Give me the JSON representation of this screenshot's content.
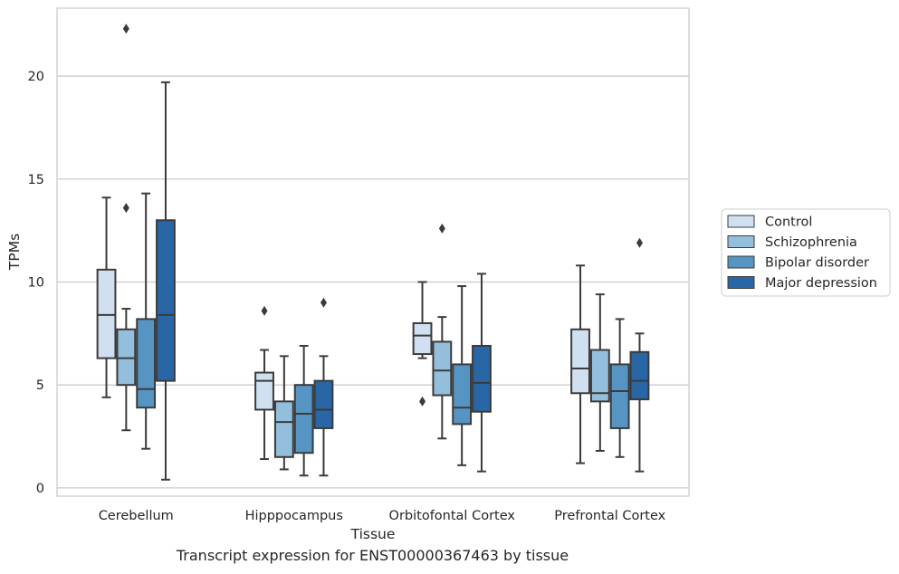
{
  "caption": "Transcript expression for ENST00000367463 by tissue",
  "chart_data": {
    "type": "box",
    "xlabel": "Tissue",
    "ylabel": "TPMs",
    "ylim": [
      -0.4,
      23.3
    ],
    "yticks": [
      0,
      5,
      10,
      15,
      20
    ],
    "grid": "horizontal",
    "legend_position": "right-outside",
    "categories": [
      "Cerebellum",
      "Hipppocampus",
      "Orbitofontal Cortex",
      "Prefrontal Cortex"
    ],
    "series": [
      {
        "name": "Control",
        "color": "#d1e0f0",
        "boxes": [
          {
            "whislo": 4.4,
            "q1": 6.3,
            "med": 8.4,
            "q3": 10.6,
            "whishi": 14.1,
            "fliers": []
          },
          {
            "whislo": 1.4,
            "q1": 3.8,
            "med": 5.2,
            "q3": 5.6,
            "whishi": 6.7,
            "fliers": [
              8.6
            ]
          },
          {
            "whislo": 6.3,
            "q1": 6.5,
            "med": 7.4,
            "q3": 8.0,
            "whishi": 10.0,
            "fliers": [
              4.2
            ]
          },
          {
            "whislo": 1.2,
            "q1": 4.6,
            "med": 5.8,
            "q3": 7.7,
            "whishi": 10.8,
            "fliers": []
          }
        ]
      },
      {
        "name": "Schizophrenia",
        "color": "#94bfdc",
        "boxes": [
          {
            "whislo": 2.8,
            "q1": 5.0,
            "med": 6.3,
            "q3": 7.7,
            "whishi": 8.7,
            "fliers": [
              13.6,
              22.3
            ]
          },
          {
            "whislo": 0.9,
            "q1": 1.5,
            "med": 3.2,
            "q3": 4.2,
            "whishi": 6.4,
            "fliers": []
          },
          {
            "whislo": 2.4,
            "q1": 4.5,
            "med": 5.7,
            "q3": 7.1,
            "whishi": 8.3,
            "fliers": [
              12.6
            ]
          },
          {
            "whislo": 1.8,
            "q1": 4.2,
            "med": 4.6,
            "q3": 6.7,
            "whishi": 9.4,
            "fliers": []
          }
        ]
      },
      {
        "name": "Bipolar disorder",
        "color": "#5695c3",
        "boxes": [
          {
            "whislo": 1.9,
            "q1": 3.9,
            "med": 4.8,
            "q3": 8.2,
            "whishi": 14.3,
            "fliers": []
          },
          {
            "whislo": 0.6,
            "q1": 1.7,
            "med": 3.6,
            "q3": 5.0,
            "whishi": 6.9,
            "fliers": []
          },
          {
            "whislo": 1.1,
            "q1": 3.1,
            "med": 3.9,
            "q3": 6.0,
            "whishi": 9.8,
            "fliers": []
          },
          {
            "whislo": 1.5,
            "q1": 2.9,
            "med": 4.7,
            "q3": 6.0,
            "whishi": 8.2,
            "fliers": []
          }
        ]
      },
      {
        "name": "Major depression",
        "color": "#2866a6",
        "boxes": [
          {
            "whislo": 0.4,
            "q1": 5.2,
            "med": 8.4,
            "q3": 13.0,
            "whishi": 19.7,
            "fliers": []
          },
          {
            "whislo": 0.6,
            "q1": 2.9,
            "med": 3.8,
            "q3": 5.2,
            "whishi": 6.4,
            "fliers": [
              9.0
            ]
          },
          {
            "whislo": 0.8,
            "q1": 3.7,
            "med": 5.1,
            "q3": 6.9,
            "whishi": 10.4,
            "fliers": []
          },
          {
            "whislo": 0.8,
            "q1": 4.3,
            "med": 5.2,
            "q3": 6.6,
            "whishi": 7.5,
            "fliers": [
              11.9
            ]
          }
        ]
      }
    ]
  }
}
